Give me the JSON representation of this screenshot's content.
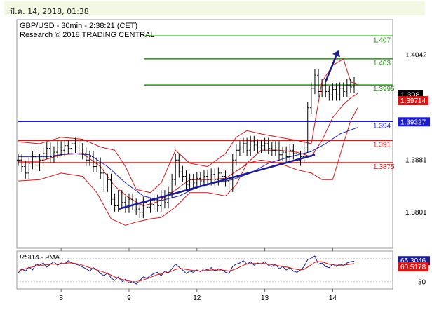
{
  "header": {
    "datetime": "มี.ค. 14, 2018, 01:38"
  },
  "chart_data": {
    "type": "candlestick",
    "title": "GBP/USD - 30min - 2:38:21 (CET)",
    "subtitle": "Research © 2018 TRADING CENTRAL",
    "x_ticks": [
      "8",
      "9",
      "12",
      "13",
      "14"
    ],
    "y_ticks": [
      1.3801,
      1.3881,
      1.4042
    ],
    "ylim": [
      1.3745,
      1.4095
    ],
    "last_price": "1.398",
    "last_price_red": "1.39714",
    "levels": [
      {
        "label": "1.407",
        "value": 1.407,
        "color": "#2f8c1e"
      },
      {
        "label": "1.403",
        "value": 1.4035,
        "color": "#2f8c1e"
      },
      {
        "label": "1.3995",
        "value": 1.3995,
        "color": "#2f8c1e"
      },
      {
        "label": "1.394",
        "value": 1.3939,
        "color": "#1c1ccc",
        "tag": "1.39327"
      },
      {
        "label": "1.391",
        "value": 1.391,
        "color": "#d81818"
      },
      {
        "label": "1.3875",
        "value": 1.3876,
        "color": "#d81818"
      }
    ],
    "trendline": {
      "from": [
        28,
        1.3805
      ],
      "to": [
        83,
        1.3888
      ]
    },
    "forecast_arrow": {
      "from": [
        86,
        1.4
      ],
      "to": [
        89,
        1.404
      ]
    },
    "close": [
      1.388,
      1.387,
      1.386,
      1.3875,
      1.3885,
      1.3872,
      1.388,
      1.389,
      1.3898,
      1.3885,
      1.3892,
      1.39,
      1.3895,
      1.3902,
      1.3898,
      1.3905,
      1.39,
      1.3897,
      1.389,
      1.388,
      1.3885,
      1.387,
      1.3875,
      1.386,
      1.384,
      1.385,
      1.382,
      1.381,
      1.3825,
      1.3815,
      1.3808,
      1.382,
      1.3812,
      1.3805,
      1.38,
      1.3815,
      1.3808,
      1.3812,
      1.3818,
      1.381,
      1.3825,
      1.3815,
      1.383,
      1.385,
      1.388,
      1.3862,
      1.3855,
      1.3842,
      1.385,
      1.3845,
      1.3852,
      1.3848,
      1.3855,
      1.385,
      1.3858,
      1.385,
      1.386,
      1.3855,
      1.3848,
      1.384,
      1.388,
      1.3895,
      1.39,
      1.3905,
      1.3895,
      1.3908,
      1.3903,
      1.39,
      1.3902,
      1.3905,
      1.3898,
      1.3895,
      1.39,
      1.3888,
      1.3892,
      1.3885,
      1.3895,
      1.389,
      1.388,
      1.3885,
      1.39,
      1.396,
      1.399,
      1.401,
      1.3985,
      1.3995,
      1.3985,
      1.398,
      1.3988,
      1.398,
      1.399,
      1.3985,
      1.3995,
      1.3992,
      1.3998
    ],
    "bollinger": {
      "upper": [
        [
          0,
          1.3908
        ],
        [
          6,
          1.3905
        ],
        [
          12,
          1.3915
        ],
        [
          18,
          1.3912
        ],
        [
          23,
          1.39
        ],
        [
          27,
          1.3895
        ],
        [
          30,
          1.387
        ],
        [
          33,
          1.3835
        ],
        [
          37,
          1.383
        ],
        [
          40,
          1.3845
        ],
        [
          44,
          1.3895
        ],
        [
          48,
          1.3875
        ],
        [
          53,
          1.387
        ],
        [
          58,
          1.389
        ],
        [
          61,
          1.3915
        ],
        [
          64,
          1.3925
        ],
        [
          68,
          1.392
        ],
        [
          73,
          1.3915
        ],
        [
          78,
          1.391
        ],
        [
          82,
          1.3905
        ],
        [
          85,
          1.4
        ],
        [
          88,
          1.4025
        ],
        [
          91,
          1.4035
        ],
        [
          93,
          1.4
        ],
        [
          95,
          1.3995
        ]
      ],
      "lower": [
        [
          0,
          1.3848
        ],
        [
          6,
          1.385
        ],
        [
          12,
          1.386
        ],
        [
          18,
          1.3855
        ],
        [
          22,
          1.383
        ],
        [
          26,
          1.379
        ],
        [
          30,
          1.378
        ],
        [
          33,
          1.3785
        ],
        [
          37,
          1.379
        ],
        [
          40,
          1.3792
        ],
        [
          44,
          1.3808
        ],
        [
          48,
          1.383
        ],
        [
          53,
          1.383
        ],
        [
          58,
          1.3825
        ],
        [
          61,
          1.3842
        ],
        [
          64,
          1.3875
        ],
        [
          68,
          1.388
        ],
        [
          73,
          1.3875
        ],
        [
          78,
          1.3865
        ],
        [
          82,
          1.386
        ],
        [
          85,
          1.385
        ],
        [
          88,
          1.385
        ],
        [
          91,
          1.3905
        ],
        [
          93,
          1.394
        ],
        [
          95,
          1.396
        ]
      ],
      "middle": [
        [
          0,
          1.3878
        ],
        [
          6,
          1.3878
        ],
        [
          12,
          1.3888
        ],
        [
          18,
          1.389
        ],
        [
          23,
          1.387
        ],
        [
          27,
          1.384
        ],
        [
          31,
          1.3822
        ],
        [
          35,
          1.381
        ],
        [
          39,
          1.3816
        ],
        [
          43,
          1.383
        ],
        [
          48,
          1.385
        ],
        [
          53,
          1.385
        ],
        [
          58,
          1.3852
        ],
        [
          63,
          1.387
        ],
        [
          68,
          1.3895
        ],
        [
          73,
          1.3895
        ],
        [
          78,
          1.3892
        ],
        [
          82,
          1.3885
        ],
        [
          85,
          1.391
        ],
        [
          88,
          1.3945
        ],
        [
          91,
          1.3965
        ],
        [
          93,
          1.3975
        ],
        [
          95,
          1.3982
        ]
      ]
    },
    "moving_average": [
      [
        0,
        1.3885
      ],
      [
        8,
        1.3885
      ],
      [
        14,
        1.389
      ],
      [
        20,
        1.3888
      ],
      [
        25,
        1.387
      ],
      [
        30,
        1.3845
      ],
      [
        35,
        1.3825
      ],
      [
        40,
        1.3818
      ],
      [
        45,
        1.3825
      ],
      [
        50,
        1.3838
      ],
      [
        55,
        1.3845
      ],
      [
        60,
        1.385
      ],
      [
        65,
        1.386
      ],
      [
        70,
        1.3875
      ],
      [
        76,
        1.3885
      ],
      [
        82,
        1.3893
      ],
      [
        86,
        1.3905
      ],
      [
        90,
        1.392
      ],
      [
        95,
        1.393
      ]
    ],
    "rsi": {
      "title": "RSI14 - 9MA",
      "ylim": [
        20,
        80
      ],
      "ticks": [
        30,
        70
      ],
      "value": "65.3046",
      "ma_value": "60.5178",
      "series": [
        45,
        52,
        48,
        55,
        50,
        60,
        58,
        62,
        55,
        60,
        64,
        58,
        62,
        60,
        66,
        62,
        60,
        58,
        55,
        52,
        48,
        54,
        50,
        44,
        40,
        45,
        36,
        32,
        38,
        30,
        34,
        28,
        30,
        26,
        32,
        38,
        36,
        40,
        44,
        46,
        40,
        48,
        45,
        52,
        60,
        55,
        50,
        44,
        48,
        46,
        50,
        47,
        52,
        50,
        54,
        48,
        52,
        50,
        46,
        44,
        56,
        60,
        62,
        66,
        60,
        64,
        58,
        62,
        60,
        64,
        58,
        56,
        60,
        52,
        56,
        50,
        54,
        48,
        46,
        50,
        56,
        68,
        70,
        74,
        60,
        62,
        56,
        54,
        60,
        56,
        60,
        58,
        62,
        64,
        65
      ],
      "ma": [
        48,
        50,
        52,
        54,
        55,
        57,
        58,
        58,
        59,
        60,
        60,
        60,
        61,
        61,
        62,
        62,
        61,
        60,
        58,
        56,
        54,
        52,
        50,
        48,
        46,
        44,
        41,
        38,
        36,
        34,
        32,
        31,
        30,
        30,
        31,
        33,
        35,
        37,
        40,
        42,
        43,
        45,
        46,
        48,
        51,
        52,
        52,
        51,
        50,
        49,
        49,
        48,
        49,
        49,
        50,
        50,
        50,
        50,
        49,
        48,
        50,
        52,
        55,
        58,
        60,
        61,
        61,
        61,
        61,
        61,
        60,
        59,
        58,
        57,
        56,
        55,
        54,
        52,
        51,
        50,
        51,
        55,
        59,
        63,
        64,
        64,
        62,
        60,
        59,
        58,
        58,
        58,
        59,
        60,
        61
      ]
    }
  }
}
